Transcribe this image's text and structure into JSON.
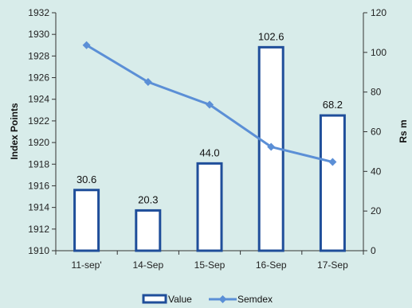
{
  "chart_data": {
    "type": "bar+line",
    "categories": [
      "11-sep'",
      "14-Sep",
      "15-Sep",
      "16-Sep",
      "17-Sep"
    ],
    "series": [
      {
        "name": "Value",
        "type": "bar",
        "axis": "right",
        "values": [
          30.6,
          20.3,
          44.0,
          102.6,
          68.2
        ],
        "labels": [
          "30.6",
          "20.3",
          "44.0",
          "102.6",
          "68.2"
        ],
        "color": "#1f4e9a"
      },
      {
        "name": "Semdex",
        "type": "line",
        "axis": "left",
        "values": [
          1929.0,
          1925.6,
          1923.5,
          1919.6,
          1918.2
        ],
        "color": "#5b8fd6"
      }
    ],
    "ylabel_left": "Index Points",
    "ylabel_right": "Rs m",
    "ylim_left": [
      1910,
      1932
    ],
    "yticks_left": [
      1910,
      1912,
      1914,
      1916,
      1918,
      1920,
      1922,
      1924,
      1926,
      1928,
      1930,
      1932
    ],
    "ylim_right": [
      0,
      120
    ],
    "yticks_right": [
      0,
      20,
      40,
      60,
      80,
      100,
      120
    ],
    "grid": false,
    "legend_position": "bottom",
    "background": "#d8ecea"
  }
}
